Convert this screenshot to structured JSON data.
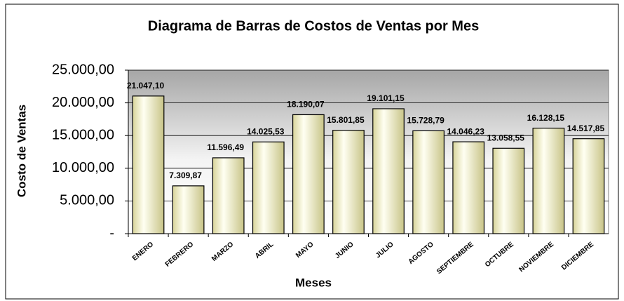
{
  "chart_data": {
    "type": "bar",
    "title": "Diagrama de Barras de Costos de Ventas por Mes",
    "x_label": "Meses",
    "y_label": "Costo de Ventas",
    "categories": [
      "ENERO",
      "FEBRERO",
      "MARZO",
      "ABRIL",
      "MAYO",
      "JUNIO",
      "JULIO",
      "AGOSTO",
      "SEPTIEMBRE",
      "OCTUBRE",
      "NOVIEMBRE",
      "DICIEMBRE"
    ],
    "values": [
      21047.1,
      7309.87,
      11596.49,
      14025.53,
      18190.07,
      15801.85,
      19101.15,
      15728.79,
      14046.23,
      13058.55,
      16128.15,
      14517.85
    ],
    "value_labels": [
      "21.047,10",
      "7.309,87",
      "11.596,49",
      "14.025,53",
      "18.190,07",
      "15.801,85",
      "19.101,15",
      "15.728,79",
      "14.046,23",
      "13.058,55",
      "16.128,15",
      "14.517,85"
    ],
    "color": "#f0eec0",
    "ylim": [
      0,
      25000
    ],
    "yticks": [
      {
        "value": 0,
        "label": "-"
      },
      {
        "value": 5000,
        "label": "5.000,00"
      },
      {
        "value": 10000,
        "label": "10.000,00"
      },
      {
        "value": 15000,
        "label": "15.000,00"
      },
      {
        "value": 20000,
        "label": "20.000,00"
      },
      {
        "value": 25000,
        "label": "25.000,00"
      }
    ],
    "grid": true
  }
}
